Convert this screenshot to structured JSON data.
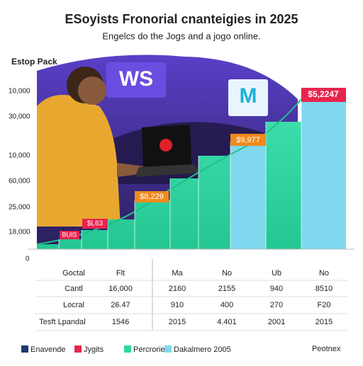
{
  "header": {
    "title": "ESoyists Fronorial cnanteigies in 2025",
    "subtitle": "Engelcs do the Jogs and a jogo online."
  },
  "section_label": "Estop Pack",
  "y_labels": [
    "10,000",
    "30,000",
    "10,000",
    "60,000",
    "25,000",
    "18,000",
    "0"
  ],
  "signs": [
    "WS",
    "M"
  ],
  "callouts": [
    "BUIS",
    "$L63",
    "$8,229",
    "$9,977",
    "$5,2247"
  ],
  "table": {
    "rows": [
      [
        "Goctal",
        "Flt",
        "Ma",
        "No",
        "Ub",
        "No"
      ],
      [
        "Cantl",
        "16,000",
        "2160",
        "2155",
        "940",
        "8510"
      ],
      [
        "Locral",
        "26.47",
        "910",
        "400",
        "270",
        "F20"
      ],
      [
        "Tesft Lpandal",
        "1546",
        "2015",
        "4.401",
        "2001",
        "2015"
      ]
    ]
  },
  "legend": [
    {
      "label": "Enavende",
      "color": "#1f3a6e"
    },
    {
      "label": "Jygits",
      "color": "#e8254f"
    },
    {
      "label": "Percrories",
      "color": "#2fd6a0"
    },
    {
      "label": "Dakalmero 2005",
      "color": "#7fd8ee"
    }
  ],
  "footer": "Peotnex"
}
